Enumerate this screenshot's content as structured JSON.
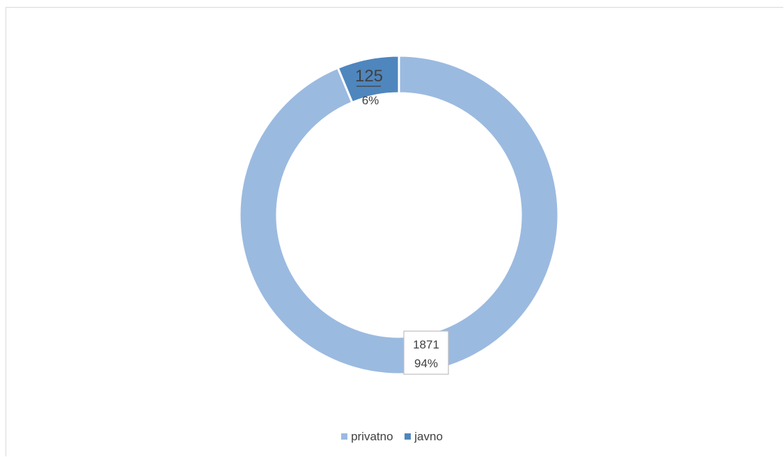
{
  "chart_data": {
    "type": "pie",
    "variant": "doughnut",
    "series": [
      {
        "name": "privatno",
        "value": 1871,
        "percent": "94%",
        "value_label": "1871",
        "color": "#9bbae0"
      },
      {
        "name": "javno",
        "value": 125,
        "percent": "6%",
        "value_label": "125",
        "color": "#4f86be"
      }
    ],
    "legend_position": "bottom"
  }
}
